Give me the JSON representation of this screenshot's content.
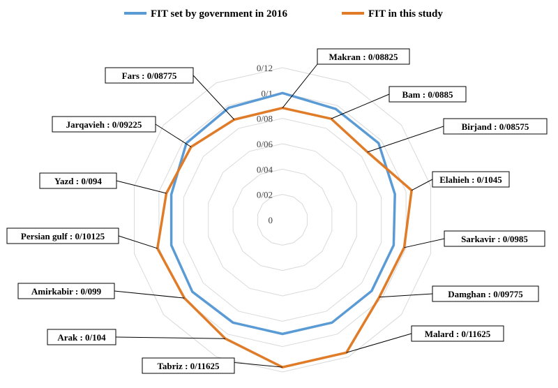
{
  "chart_data": {
    "type": "radar",
    "categories": [
      "Makran",
      "Bam",
      "Birjand",
      "Elahieh",
      "Sarkavir",
      "Damghan",
      "Malard",
      "Tabriz",
      "Arak",
      "Amirkabir",
      "Persian gulf",
      "Yazd",
      "Jarqavieh",
      "Fars"
    ],
    "series": [
      {
        "name": "FIT set by government in 2016",
        "color": "#5b9bd5",
        "values": [
          0.1,
          0.097,
          0.097,
          0.091,
          0.09,
          0.09,
          0.09,
          0.09,
          0.09,
          0.091,
          0.09,
          0.09,
          0.097,
          0.098
        ]
      },
      {
        "name": "FIT in this study",
        "color": "#e07b28",
        "values": [
          0.08825,
          0.0885,
          0.08575,
          0.1045,
          0.0985,
          0.09775,
          0.11625,
          0.11625,
          0.104,
          0.099,
          0.10125,
          0.094,
          0.09225,
          0.08775
        ]
      }
    ],
    "rlim": [
      0,
      0.12
    ],
    "ticks": [
      0,
      0.02,
      0.04,
      0.06,
      0.08,
      0.1,
      0.12
    ],
    "tick_labels": [
      "0",
      "0/02",
      "0/04",
      "0/06",
      "0/08",
      "0/1",
      "0/12"
    ],
    "legend_position": "top",
    "data_labels": [
      "Makran : 0/08825",
      "Bam : 0/0885",
      "Birjand : 0/08575",
      "Elahieh : 0/1045",
      "Sarkavir : 0/0985",
      "Damghan : 0/09775",
      "Malard : 0/11625",
      "Tabriz : 0/11625",
      "Arak : 0/104",
      "Amirkabir : 0/099",
      "Persian gulf : 0/10125",
      "Yazd : 0/094",
      "Jarqavieh : 0/09225",
      "Fars : 0/08775"
    ]
  }
}
